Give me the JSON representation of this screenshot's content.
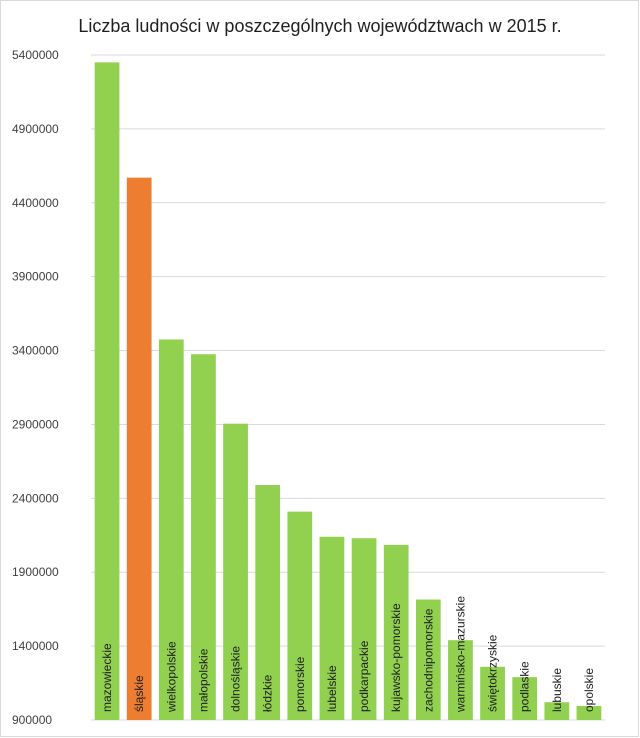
{
  "chart_data": {
    "type": "bar",
    "title": "Liczba ludności w poszczególnych województwach w 2015 r.",
    "xlabel": "",
    "ylabel": "",
    "ylim": [
      900000,
      5400000
    ],
    "yticks": [
      900000,
      1400000,
      1900000,
      2400000,
      2900000,
      3400000,
      3900000,
      4400000,
      4900000,
      5400000
    ],
    "grid": true,
    "legend": "none",
    "categories": [
      "mazowieckie",
      "śląskie",
      "wielkopolskie",
      "małopolskie",
      "dolnośląskie",
      "łódzkie",
      "pomorskie",
      "lubelskie",
      "podkarpackie",
      "kujawsko-pomorskie",
      "zachodnipomorskie",
      "warmińsko-mazurskie",
      "świętokrzyskie",
      "podlaskie",
      "lubuskie",
      "opolskie"
    ],
    "values": [
      5350000,
      4570000,
      3475000,
      3375000,
      2905000,
      2490000,
      2310000,
      2140000,
      2130000,
      2085000,
      1715000,
      1440000,
      1260000,
      1190000,
      1020000,
      995000
    ],
    "colors": [
      "#92d050",
      "#ed7d31",
      "#92d050",
      "#92d050",
      "#92d050",
      "#92d050",
      "#92d050",
      "#92d050",
      "#92d050",
      "#92d050",
      "#92d050",
      "#92d050",
      "#92d050",
      "#92d050",
      "#92d050",
      "#92d050"
    ],
    "gridColor": "#d9d9d9"
  }
}
